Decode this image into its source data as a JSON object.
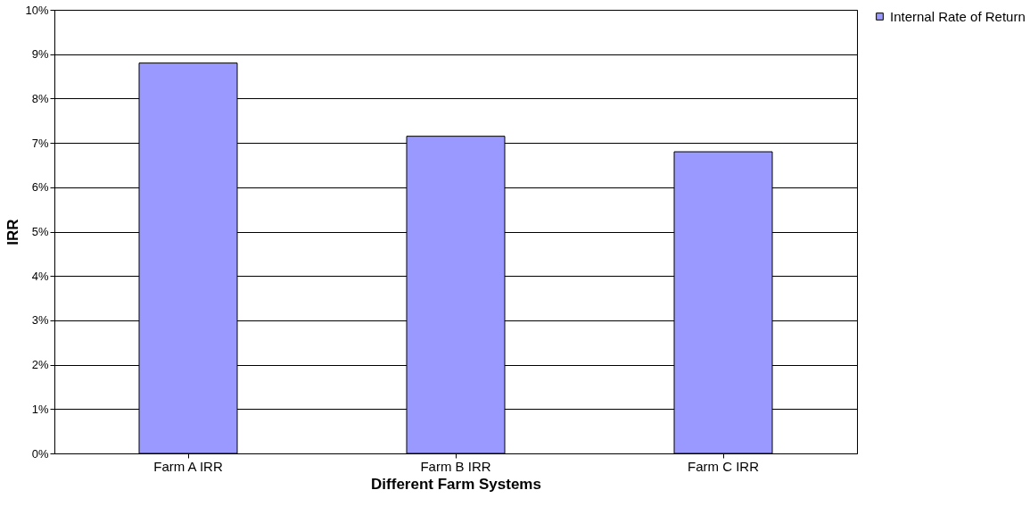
{
  "chart_data": {
    "type": "bar",
    "xlabel": "Different Farm Systems",
    "ylabel": "IRR",
    "categories": [
      "Farm A IRR",
      "Farm B IRR",
      "Farm C IRR"
    ],
    "series": [
      {
        "name": "Internal Rate of Return",
        "color": "#9999ff",
        "values": [
          8.8,
          7.15,
          6.8
        ]
      }
    ],
    "ylim": [
      0,
      10
    ],
    "yticks": [
      {
        "value": 0,
        "label": "0%"
      },
      {
        "value": 1,
        "label": "1%"
      },
      {
        "value": 2,
        "label": "2%"
      },
      {
        "value": 3,
        "label": "3%"
      },
      {
        "value": 4,
        "label": "4%"
      },
      {
        "value": 5,
        "label": "5%"
      },
      {
        "value": 6,
        "label": "6%"
      },
      {
        "value": 7,
        "label": "7%"
      },
      {
        "value": 8,
        "label": "8%"
      },
      {
        "value": 9,
        "label": "9%"
      },
      {
        "value": 10,
        "label": "10%"
      }
    ],
    "grid": "y",
    "legend": "right"
  }
}
